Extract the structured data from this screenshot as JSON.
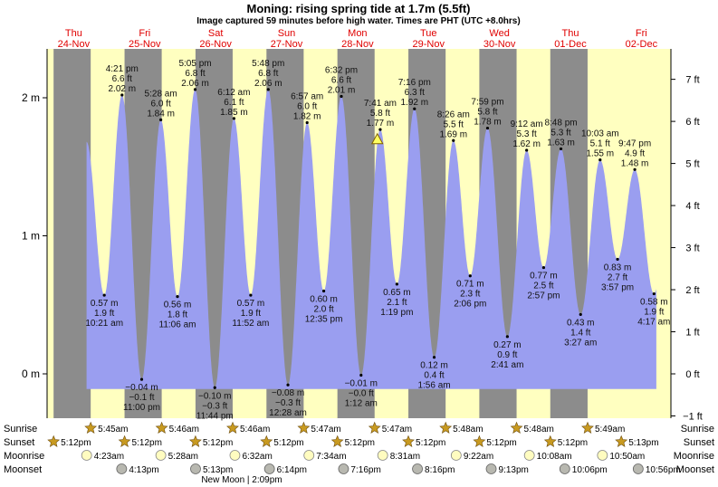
{
  "chart_data": {
    "type": "area",
    "title": "Moning: rising  spring tide at 1.7m (5.5ft)",
    "subtitle": "Image captured 59 minutes before high water. Times are PHT (UTC +8.0hrs)",
    "days": [
      {
        "dow": "Thu",
        "date": "24-Nov"
      },
      {
        "dow": "Fri",
        "date": "25-Nov"
      },
      {
        "dow": "Sat",
        "date": "26-Nov"
      },
      {
        "dow": "Sun",
        "date": "27-Nov"
      },
      {
        "dow": "Mon",
        "date": "28-Nov"
      },
      {
        "dow": "Tue",
        "date": "29-Nov"
      },
      {
        "dow": "Wed",
        "date": "30-Nov"
      },
      {
        "dow": "Thu",
        "date": "01-Dec"
      },
      {
        "dow": "Fri",
        "date": "02-Dec"
      }
    ],
    "y_left": {
      "ticks": [
        "2 m",
        "1 m",
        "0 m"
      ],
      "values": [
        2,
        1,
        0
      ],
      "ylim": [
        -0.24,
        2.29
      ]
    },
    "y_right": {
      "ticks": [
        "7 ft",
        "6 ft",
        "5 ft",
        "4 ft",
        "3 ft",
        "2 ft",
        "1 ft",
        "0 ft",
        "−1 ft"
      ],
      "values": [
        7,
        6,
        5,
        4,
        3,
        2,
        1,
        0,
        -1
      ]
    },
    "tides": [
      {
        "t": 34.35,
        "h": 0.57,
        "type": "low",
        "m": "0.57 m",
        "ft": "1.9 ft",
        "time": "10:21 am"
      },
      {
        "t": 40.35,
        "h": 2.02,
        "type": "high",
        "m": "2.02 m",
        "ft": "6.6 ft",
        "time": "4:21 pm"
      },
      {
        "t": 47.0,
        "h": -0.04,
        "type": "low",
        "m": "−0.04 m",
        "ft": "−0.1 ft",
        "time": "11:00 pm"
      },
      {
        "t": 53.47,
        "h": 1.84,
        "type": "high",
        "m": "1.84 m",
        "ft": "6.0 ft",
        "time": "5:28 am"
      },
      {
        "t": 59.1,
        "h": 0.56,
        "type": "low",
        "m": "0.56 m",
        "ft": "1.8 ft",
        "time": "11:06 am"
      },
      {
        "t": 65.08,
        "h": 2.06,
        "type": "high",
        "m": "2.06 m",
        "ft": "6.8 ft",
        "time": "5:05 pm"
      },
      {
        "t": 71.73,
        "h": -0.1,
        "type": "low",
        "m": "−0.10 m",
        "ft": "−0.3 ft",
        "time": "11:44 pm"
      },
      {
        "t": 78.2,
        "h": 1.85,
        "type": "high",
        "m": "1.85 m",
        "ft": "6.1 ft",
        "time": "6:12 am"
      },
      {
        "t": 83.87,
        "h": 0.57,
        "type": "low",
        "m": "0.57 m",
        "ft": "1.9 ft",
        "time": "11:52 am"
      },
      {
        "t": 89.8,
        "h": 2.06,
        "type": "high",
        "m": "2.06 m",
        "ft": "6.8 ft",
        "time": "5:48 pm"
      },
      {
        "t": 96.47,
        "h": -0.08,
        "type": "low",
        "m": "−0.08 m",
        "ft": "−0.3 ft",
        "time": "12:28 am"
      },
      {
        "t": 102.95,
        "h": 1.82,
        "type": "high",
        "m": "1.82 m",
        "ft": "6.0 ft",
        "time": "6:57 am"
      },
      {
        "t": 108.58,
        "h": 0.6,
        "type": "low",
        "m": "0.60 m",
        "ft": "2.0 ft",
        "time": "12:35 pm"
      },
      {
        "t": 114.53,
        "h": 2.01,
        "type": "high",
        "m": "2.01 m",
        "ft": "6.6 ft",
        "time": "6:32 pm"
      },
      {
        "t": 121.2,
        "h": -0.01,
        "type": "low",
        "m": "−0.01 m",
        "ft": "−0.0 ft",
        "time": "1:12 am"
      },
      {
        "t": 127.68,
        "h": 1.77,
        "type": "high",
        "m": "1.77 m",
        "ft": "5.8 ft",
        "time": "7:41 am"
      },
      {
        "t": 133.32,
        "h": 0.65,
        "type": "low",
        "m": "0.65 m",
        "ft": "2.1 ft",
        "time": "1:19 pm"
      },
      {
        "t": 139.27,
        "h": 1.92,
        "type": "high",
        "m": "1.92 m",
        "ft": "6.3 ft",
        "time": "7:16 pm"
      },
      {
        "t": 145.93,
        "h": 0.12,
        "type": "low",
        "m": "0.12 m",
        "ft": "0.4 ft",
        "time": "1:56 am"
      },
      {
        "t": 152.43,
        "h": 1.69,
        "type": "high",
        "m": "1.69 m",
        "ft": "5.5 ft",
        "time": "8:26 am"
      },
      {
        "t": 158.1,
        "h": 0.71,
        "type": "low",
        "m": "0.71 m",
        "ft": "2.3 ft",
        "time": "2:06 pm"
      },
      {
        "t": 163.98,
        "h": 1.78,
        "type": "high",
        "m": "1.78 m",
        "ft": "5.8 ft",
        "time": "7:59 pm"
      },
      {
        "t": 170.68,
        "h": 0.27,
        "type": "low",
        "m": "0.27 m",
        "ft": "0.9 ft",
        "time": "2:41 am"
      },
      {
        "t": 177.2,
        "h": 1.62,
        "type": "high",
        "m": "1.62 m",
        "ft": "5.3 ft",
        "time": "9:12 am"
      },
      {
        "t": 182.95,
        "h": 0.77,
        "type": "low",
        "m": "0.77 m",
        "ft": "2.5 ft",
        "time": "2:57 pm"
      },
      {
        "t": 188.8,
        "h": 1.63,
        "type": "high",
        "m": "1.63 m",
        "ft": "5.3 ft",
        "time": "8:48 pm"
      },
      {
        "t": 195.45,
        "h": 0.43,
        "type": "low",
        "m": "0.43 m",
        "ft": "1.4 ft",
        "time": "3:27 am"
      },
      {
        "t": 202.05,
        "h": 1.55,
        "type": "high",
        "m": "1.55 m",
        "ft": "5.1 ft",
        "time": "10:03 am"
      },
      {
        "t": 207.95,
        "h": 0.83,
        "type": "low",
        "m": "0.83 m",
        "ft": "2.7 ft",
        "time": "3:57 pm"
      },
      {
        "t": 213.78,
        "h": 1.48,
        "type": "high",
        "m": "1.48 m",
        "ft": "4.9 ft",
        "time": "9:47 pm"
      },
      {
        "t": 220.28,
        "h": 0.58,
        "type": "low",
        "m": "0.58 m",
        "ft": "1.9 ft",
        "time": "4:17 am"
      }
    ],
    "current": {
      "t": 126.7,
      "h": 1.7
    },
    "sunrise": [
      5.75,
      5.77,
      5.77,
      5.78,
      5.78,
      5.8,
      5.8,
      5.82
    ],
    "sunset": [
      17.2,
      17.2,
      17.2,
      17.2,
      17.2,
      17.2,
      17.2,
      17.2,
      17.22
    ],
    "rows": {
      "labels": {
        "sunrise": "Sunrise",
        "sunset": "Sunset",
        "moonrise": "Moonrise",
        "moonset": "Moonset"
      },
      "sunrise": [
        {
          "t": 29.75,
          "text": "5:45am"
        },
        {
          "t": 53.77,
          "text": "5:46am"
        },
        {
          "t": 77.77,
          "text": "5:46am"
        },
        {
          "t": 101.78,
          "text": "5:47am"
        },
        {
          "t": 125.78,
          "text": "5:47am"
        },
        {
          "t": 149.8,
          "text": "5:48am"
        },
        {
          "t": 173.8,
          "text": "5:48am"
        },
        {
          "t": 197.82,
          "text": "5:49am"
        }
      ],
      "sunset": [
        {
          "t": 17.2,
          "text": "5:12pm"
        },
        {
          "t": 41.2,
          "text": "5:12pm"
        },
        {
          "t": 65.2,
          "text": "5:12pm"
        },
        {
          "t": 89.2,
          "text": "5:12pm"
        },
        {
          "t": 113.2,
          "text": "5:12pm"
        },
        {
          "t": 137.2,
          "text": "5:12pm"
        },
        {
          "t": 161.2,
          "text": "5:12pm"
        },
        {
          "t": 185.2,
          "text": "5:12pm"
        },
        {
          "t": 209.22,
          "text": "5:13pm"
        }
      ],
      "moonrise": [
        {
          "t": 28.38,
          "text": "4:23am"
        },
        {
          "t": 53.47,
          "text": "5:28am"
        },
        {
          "t": 78.53,
          "text": "6:32am"
        },
        {
          "t": 103.57,
          "text": "7:34am"
        },
        {
          "t": 128.52,
          "text": "8:31am"
        },
        {
          "t": 153.37,
          "text": "9:22am"
        },
        {
          "t": 178.13,
          "text": "10:08am"
        },
        {
          "t": 202.83,
          "text": "10:50am"
        }
      ],
      "moonset": [
        {
          "t": 40.22,
          "text": "4:13pm"
        },
        {
          "t": 65.22,
          "text": "5:13pm"
        },
        {
          "t": 90.23,
          "text": "6:14pm"
        },
        {
          "t": 115.27,
          "text": "7:16pm"
        },
        {
          "t": 140.27,
          "text": "8:16pm"
        },
        {
          "t": 165.22,
          "text": "9:13pm"
        },
        {
          "t": 190.1,
          "text": "10:06pm"
        },
        {
          "t": 214.93,
          "text": "10:56pm"
        }
      ],
      "new_moon": {
        "t": 86.15,
        "text": "New Moon | 2:09pm"
      }
    },
    "colors": {
      "day": "#ffffc0",
      "night": "#8c8c8c",
      "water": "#9a9ef0",
      "day_label": "#e00000",
      "star": "#c89a20",
      "moon_rise": "#fffcc0",
      "moon_set": "#b8b8b0",
      "marker": "#ffff60"
    }
  }
}
